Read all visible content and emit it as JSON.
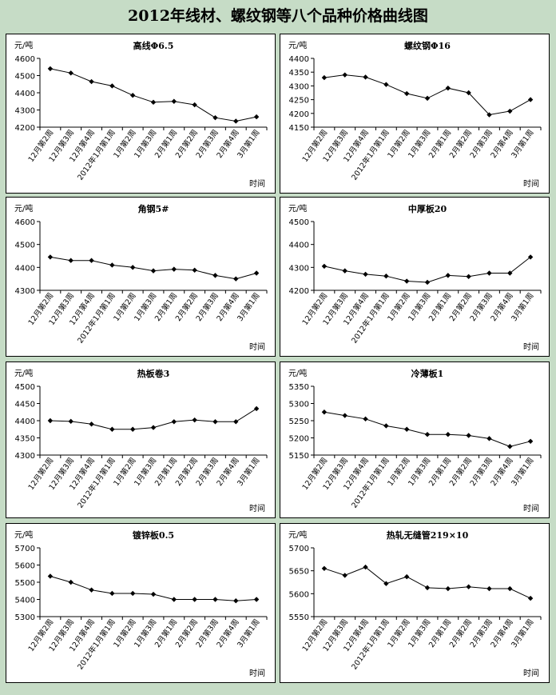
{
  "page_title": "2012年线材、螺纹钢等八个品种价格曲线图",
  "chart_data": [
    {
      "type": "line",
      "title": "高线Φ6.5",
      "ylabel": "元/吨",
      "xlabel": "时间",
      "categories": [
        "12月第2周",
        "12月第3周",
        "12月第4周",
        "2012年1月第1周",
        "1月第2周",
        "1月第3周",
        "2月第1周",
        "2月第2周",
        "2月第3周",
        "2月第4周",
        "3月第1周"
      ],
      "ylim": [
        4200,
        4600
      ],
      "yticks": [
        4200,
        4300,
        4400,
        4500,
        4600
      ],
      "values": [
        4540,
        4515,
        4465,
        4440,
        4385,
        4345,
        4350,
        4330,
        4255,
        4235,
        4260
      ]
    },
    {
      "type": "line",
      "title": "螺纹钢Φ16",
      "ylabel": "元/吨",
      "xlabel": "时间",
      "categories": [
        "12月第2周",
        "12月第3周",
        "12月第4周",
        "2012年1月第1周",
        "1月第2周",
        "1月第3周",
        "2月第1周",
        "2月第2周",
        "2月第3周",
        "2月第4周",
        "3月第1周"
      ],
      "ylim": [
        4150,
        4400
      ],
      "yticks": [
        4150,
        4200,
        4250,
        4300,
        4350,
        4400
      ],
      "values": [
        4330,
        4340,
        4332,
        4305,
        4272,
        4255,
        4292,
        4275,
        4195,
        4208,
        4250
      ]
    },
    {
      "type": "line",
      "title": "角钢5#",
      "ylabel": "元/吨",
      "xlabel": "时间",
      "categories": [
        "12月第2周",
        "12月第3周",
        "12月第4周",
        "2012年1月第1周",
        "1月第2周",
        "1月第3周",
        "2月第1周",
        "2月第2周",
        "2月第3周",
        "2月第4周",
        "3月第1周"
      ],
      "ylim": [
        4300,
        4600
      ],
      "yticks": [
        4300,
        4400,
        4500,
        4600
      ],
      "values": [
        4445,
        4430,
        4430,
        4410,
        4400,
        4385,
        4392,
        4388,
        4365,
        4350,
        4375
      ]
    },
    {
      "type": "line",
      "title": "中厚板20",
      "ylabel": "元/吨",
      "xlabel": "时间",
      "categories": [
        "12月第2周",
        "12月第3周",
        "12月第4周",
        "2012年1月第1周",
        "1月第2周",
        "1月第3周",
        "2月第1周",
        "2月第2周",
        "2月第3周",
        "2月第4周",
        "3月第1周"
      ],
      "ylim": [
        4200,
        4500
      ],
      "yticks": [
        4200,
        4300,
        4400,
        4500
      ],
      "values": [
        4305,
        4285,
        4270,
        4262,
        4240,
        4235,
        4265,
        4260,
        4275,
        4275,
        4345
      ]
    },
    {
      "type": "line",
      "title": "热板卷3",
      "ylabel": "元/吨",
      "xlabel": "时间",
      "categories": [
        "12月第2周",
        "12月第3周",
        "12月第4周",
        "2012年1月第1周",
        "1月第2周",
        "1月第3周",
        "2月第1周",
        "2月第2周",
        "2月第3周",
        "2月第4周",
        "3月第1周"
      ],
      "ylim": [
        4300,
        4500
      ],
      "yticks": [
        4300,
        4350,
        4400,
        4450,
        4500
      ],
      "values": [
        4400,
        4398,
        4390,
        4375,
        4375,
        4380,
        4397,
        4402,
        4397,
        4397,
        4435
      ]
    },
    {
      "type": "line",
      "title": "冷薄板1",
      "ylabel": "元/吨",
      "xlabel": "时间",
      "categories": [
        "12月第2周",
        "12月第3周",
        "12月第4周",
        "2012年1月第1周",
        "1月第2周",
        "1月第3周",
        "2月第1周",
        "2月第2周",
        "2月第3周",
        "2月第4周",
        "3月第1周"
      ],
      "ylim": [
        5150,
        5350
      ],
      "yticks": [
        5150,
        5200,
        5250,
        5300,
        5350
      ],
      "values": [
        5275,
        5265,
        5255,
        5235,
        5225,
        5210,
        5210,
        5207,
        5198,
        5175,
        5190
      ]
    },
    {
      "type": "line",
      "title": "镀锌板0.5",
      "ylabel": "元/吨",
      "xlabel": "时间",
      "categories": [
        "12月第2周",
        "12月第3周",
        "12月第4周",
        "2012年1月第1周",
        "1月第2周",
        "1月第3周",
        "2月第1周",
        "2月第2周",
        "2月第3周",
        "2月第4周",
        "3月第1周"
      ],
      "ylim": [
        5300,
        5700
      ],
      "yticks": [
        5300,
        5400,
        5500,
        5600,
        5700
      ],
      "values": [
        5535,
        5500,
        5455,
        5435,
        5435,
        5430,
        5400,
        5400,
        5400,
        5392,
        5400
      ]
    },
    {
      "type": "line",
      "title": "热轧无缝管219×10",
      "ylabel": "元/吨",
      "xlabel": "时间",
      "categories": [
        "12月第2周",
        "12月第3周",
        "12月第4周",
        "2012年1月第1周",
        "1月第2周",
        "1月第3周",
        "2月第1周",
        "2月第2周",
        "2月第3周",
        "2月第4周",
        "3月第1周"
      ],
      "ylim": [
        5550,
        5700
      ],
      "yticks": [
        5550,
        5600,
        5650,
        5700
      ],
      "values": [
        5655,
        5640,
        5658,
        5622,
        5637,
        5613,
        5611,
        5615,
        5611,
        5611,
        5590
      ]
    }
  ]
}
